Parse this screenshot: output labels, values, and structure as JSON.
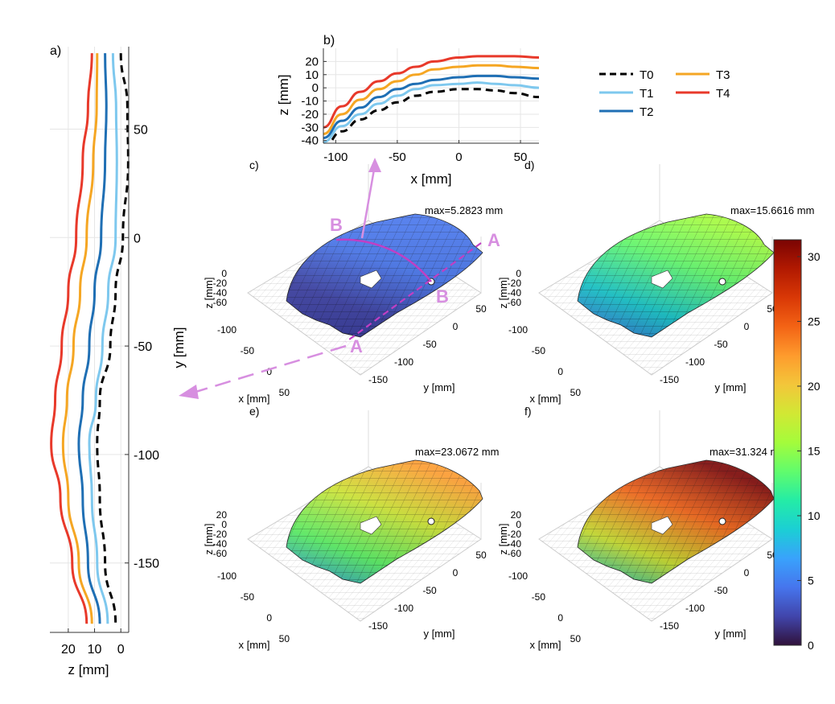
{
  "chart_data": [
    {
      "panel": "a",
      "type": "line",
      "xlabel": "z [mm]",
      "ylabel": "y [mm]",
      "xlim": [
        27,
        -3
      ],
      "ylim": [
        -182,
        88
      ],
      "xticks": [
        "20",
        "10",
        "0"
      ],
      "yticks": [
        "50",
        "0",
        "-50",
        "-100",
        "-150"
      ],
      "y": [
        85,
        60,
        35,
        0,
        -25,
        -50,
        -75,
        -95,
        -120,
        -150,
        -178
      ],
      "series": [
        {
          "name": "T0",
          "values": [
            0,
            -2.5,
            -2.8,
            -0.8,
            2,
            4,
            8,
            9,
            8,
            6,
            2
          ]
        },
        {
          "name": "T1",
          "values": [
            3,
            1.8,
            1.5,
            2,
            4.8,
            7,
            9.5,
            12,
            11,
            9,
            5
          ]
        },
        {
          "name": "T2",
          "values": [
            6,
            5.5,
            6,
            7.5,
            10,
            12,
            14.5,
            16,
            14.5,
            12.5,
            8
          ]
        },
        {
          "name": "T3",
          "values": [
            9,
            9.2,
            10.5,
            13,
            15.5,
            18,
            20.5,
            22,
            20,
            16,
            11
          ]
        },
        {
          "name": "T4",
          "values": [
            11,
            12.5,
            14.5,
            17,
            20,
            22.5,
            25,
            26.5,
            23,
            18.5,
            13
          ]
        }
      ]
    },
    {
      "panel": "b",
      "type": "line",
      "xlabel": "x [mm]",
      "ylabel": "z [mm]",
      "xlim": [
        -110,
        65
      ],
      "ylim": [
        -42,
        30
      ],
      "xticks": [
        "-100",
        "-50",
        "0",
        "50"
      ],
      "yticks": [
        "20",
        "10",
        "0",
        "-10",
        "-20",
        "-30",
        "-40"
      ],
      "x": [
        -110,
        -95,
        -80,
        -65,
        -50,
        -35,
        -20,
        0,
        15,
        30,
        45,
        65
      ],
      "series": [
        {
          "name": "T0",
          "values": [
            -45,
            -33,
            -24,
            -17,
            -11,
            -6,
            -3,
            -1,
            -1,
            -2,
            -4,
            -7
          ]
        },
        {
          "name": "T1",
          "values": [
            -41,
            -29,
            -20,
            -12,
            -6,
            -1,
            2,
            3,
            4,
            3,
            2,
            0
          ]
        },
        {
          "name": "T2",
          "values": [
            -38,
            -25,
            -15,
            -7,
            -1,
            3,
            6,
            8,
            9,
            9,
            8,
            7
          ]
        },
        {
          "name": "T3",
          "values": [
            -35,
            -20,
            -9,
            -1,
            5,
            10,
            14,
            16,
            17,
            17,
            16,
            15
          ]
        },
        {
          "name": "T4",
          "values": [
            -30,
            -14,
            -3,
            5,
            11,
            16,
            20,
            23,
            24,
            24,
            24,
            23
          ]
        }
      ],
      "legend": [
        "T0",
        "T3",
        "T1",
        "T4",
        "T2"
      ]
    },
    {
      "type": "surface3d",
      "panels": [
        {
          "label": "c)",
          "max_label": "max=5.2823 mm",
          "max_value": 5.2823
        },
        {
          "label": "d)",
          "max_label": "max=15.6616 mm",
          "max_value": 15.6616
        },
        {
          "label": "e)",
          "max_label": "max=23.0672 mm",
          "max_value": 23.0672
        },
        {
          "label": "f)",
          "max_label": "max=31.324 mm",
          "max_value": 31.324
        }
      ],
      "z_ticks_short": [
        "0",
        "-20",
        "-40",
        "-60"
      ],
      "z_ticks_long": [
        "20",
        "0",
        "-20",
        "-40",
        "-60"
      ],
      "x_ticks": [
        "-100",
        "-50",
        "0",
        "50"
      ],
      "y_ticks": [
        "50",
        "0",
        "-50",
        "-100",
        "-150"
      ],
      "xlabel": "x [mm]",
      "ylabel": "y [mm]",
      "zlabel": "z [mm]",
      "section_labels": [
        "B",
        "A",
        "B",
        "A"
      ]
    },
    {
      "type": "colorbar",
      "range": [
        0,
        31.3
      ],
      "ticks": [
        "30",
        "25",
        "20",
        "15",
        "10",
        "5",
        "0"
      ],
      "colors": [
        "#30123b",
        "#4145ab",
        "#4675ed",
        "#39a2fc",
        "#1bcfd4",
        "#24eca6",
        "#61fc6c",
        "#a4fc3b",
        "#d1e834",
        "#f3c63a",
        "#fe9b2d",
        "#f36315",
        "#d93806",
        "#b11901",
        "#7a0403"
      ]
    }
  ],
  "colors": {
    "T0": "#000000",
    "T1": "#7ec8ee",
    "T2": "#1f6fb4",
    "T3": "#f5a623",
    "T4": "#e8392a",
    "annotation": "#d78fe0",
    "section_line": "#c13fc4"
  },
  "panel_labels": {
    "a": "a)",
    "b": "b)"
  }
}
